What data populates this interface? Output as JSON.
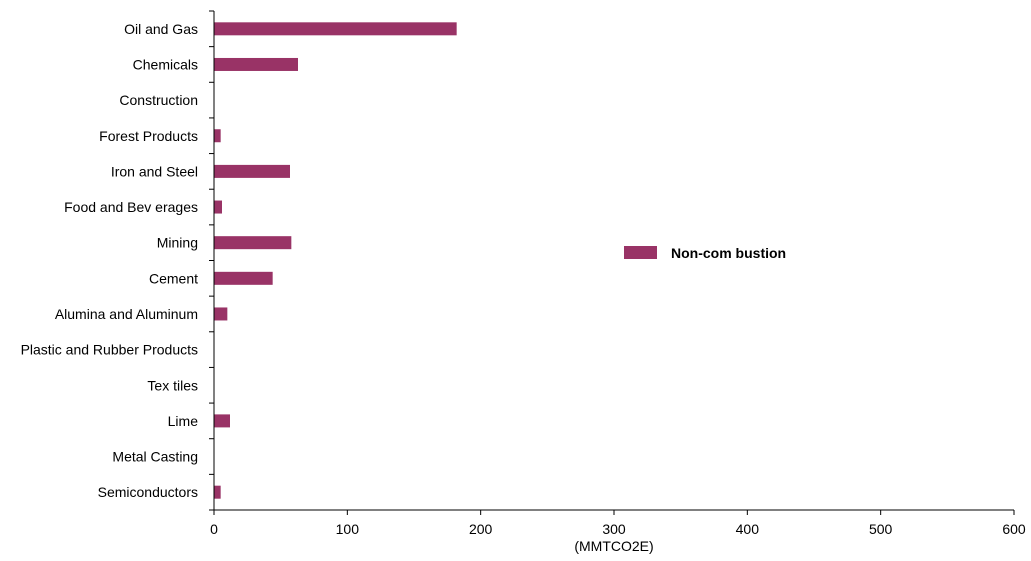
{
  "chart_data": {
    "type": "bar",
    "orientation": "horizontal",
    "categories": [
      "Oil and Gas",
      "Chemicals",
      "Construction",
      "Forest Products",
      "Iron and Steel",
      "Food and Bev erages",
      "Mining",
      "Cement",
      "Alumina and Aluminum",
      "Plastic and Rubber Products",
      "Tex tiles",
      "Lime",
      "Metal Casting",
      "Semiconductors"
    ],
    "series": [
      {
        "name": "Non-com bustion",
        "color": "#993366",
        "values": [
          182,
          63,
          0,
          5,
          57,
          6,
          58,
          44,
          10,
          0,
          0,
          12,
          0,
          5
        ]
      }
    ],
    "xlabel": "(MMTCO2E)",
    "xlim": [
      0,
      600
    ],
    "xticks": [
      "0",
      "100",
      "200",
      "300",
      "400",
      "500",
      "600"
    ],
    "grid": false,
    "legend_position": "right"
  }
}
